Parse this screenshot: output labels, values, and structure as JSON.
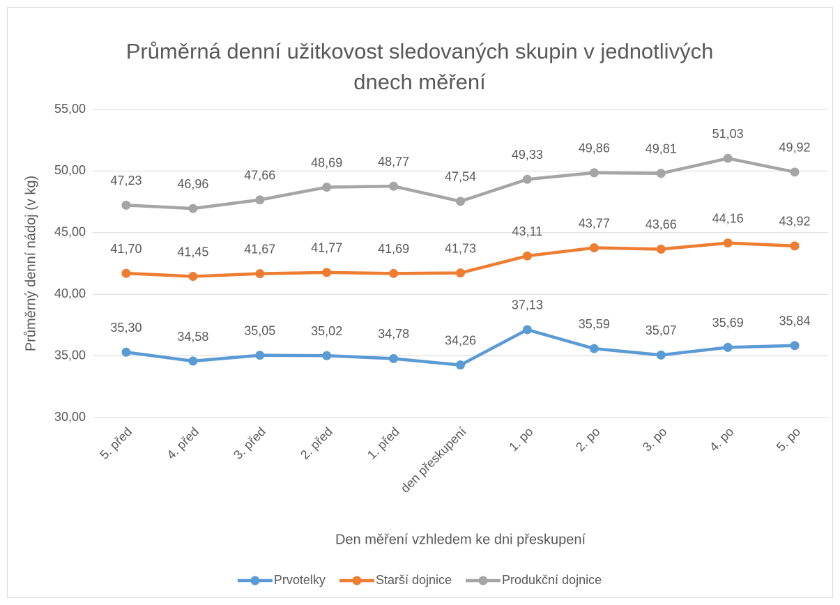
{
  "chart_data": {
    "type": "line",
    "title": "Průměrná denní užitkovost sledovaných skupin v jednotlivých dnech měření",
    "xlabel": "Den měření vzhledem ke dni přeskupení",
    "ylabel": "Průměrný denní nádoj (v kg)",
    "categories": [
      "5. před",
      "4. před",
      "3. před",
      "2. před",
      "1. před",
      "den přeskupení",
      "1. po",
      "2. po",
      "3. po",
      "4. po",
      "5. po"
    ],
    "ylim": [
      30,
      55
    ],
    "yticks": [
      {
        "value": 30,
        "label": "30,00"
      },
      {
        "value": 35,
        "label": "35,00"
      },
      {
        "value": 40,
        "label": "40,00"
      },
      {
        "value": 45,
        "label": "45,00"
      },
      {
        "value": 50,
        "label": "50,00"
      },
      {
        "value": 55,
        "label": "55,00"
      }
    ],
    "grid": true,
    "legend": "bottom",
    "series": [
      {
        "name": "Prvotelky",
        "color": "#5b9bd5",
        "values": [
          35.3,
          34.58,
          35.05,
          35.02,
          34.78,
          34.26,
          37.13,
          35.59,
          35.07,
          35.69,
          35.84
        ],
        "value_labels": [
          "35,30",
          "34,58",
          "35,05",
          "35,02",
          "34,78",
          "34,26",
          "37,13",
          "35,59",
          "35,07",
          "35,69",
          "35,84"
        ]
      },
      {
        "name": "Starší dojnice",
        "color": "#ed7d31",
        "values": [
          41.7,
          41.45,
          41.67,
          41.77,
          41.69,
          41.73,
          43.11,
          43.77,
          43.66,
          44.16,
          43.92
        ],
        "value_labels": [
          "41,70",
          "41,45",
          "41,67",
          "41,77",
          "41,69",
          "41,73",
          "43,11",
          "43,77",
          "43,66",
          "44,16",
          "43,92"
        ]
      },
      {
        "name": "Produkční dojnice",
        "color": "#a5a5a5",
        "values": [
          47.23,
          46.96,
          47.66,
          48.69,
          48.77,
          47.54,
          49.33,
          49.86,
          49.81,
          51.03,
          49.92
        ],
        "value_labels": [
          "47,23",
          "46,96",
          "47,66",
          "48,69",
          "48,77",
          "47,54",
          "49,33",
          "49,86",
          "49,81",
          "51,03",
          "49,92"
        ]
      }
    ]
  }
}
